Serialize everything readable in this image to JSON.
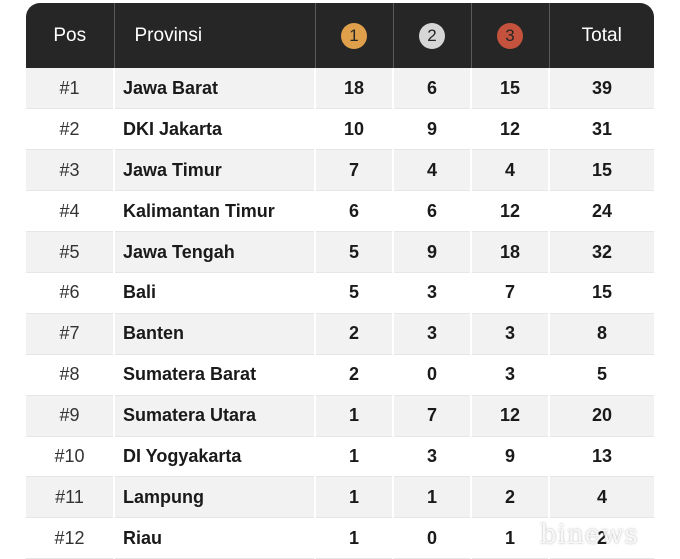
{
  "header": {
    "pos": "Pos",
    "province": "Provinsi",
    "gold": "1",
    "silver": "2",
    "bronze": "3",
    "total": "Total"
  },
  "colors": {
    "header_bg": "#262626",
    "gold": "#e0a04b",
    "silver": "#d6d6d6",
    "bronze": "#c4523d"
  },
  "rows": [
    {
      "pos": "#1",
      "province": "Jawa Barat",
      "gold": "18",
      "silver": "6",
      "bronze": "15",
      "total": "39"
    },
    {
      "pos": "#2",
      "province": "DKI Jakarta",
      "gold": "10",
      "silver": "9",
      "bronze": "12",
      "total": "31"
    },
    {
      "pos": "#3",
      "province": "Jawa Timur",
      "gold": "7",
      "silver": "4",
      "bronze": "4",
      "total": "15"
    },
    {
      "pos": "#4",
      "province": "Kalimantan Timur",
      "gold": "6",
      "silver": "6",
      "bronze": "12",
      "total": "24"
    },
    {
      "pos": "#5",
      "province": "Jawa Tengah",
      "gold": "5",
      "silver": "9",
      "bronze": "18",
      "total": "32"
    },
    {
      "pos": "#6",
      "province": "Bali",
      "gold": "5",
      "silver": "3",
      "bronze": "7",
      "total": "15"
    },
    {
      "pos": "#7",
      "province": "Banten",
      "gold": "2",
      "silver": "3",
      "bronze": "3",
      "total": "8"
    },
    {
      "pos": "#8",
      "province": "Sumatera Barat",
      "gold": "2",
      "silver": "0",
      "bronze": "3",
      "total": "5"
    },
    {
      "pos": "#9",
      "province": "Sumatera Utara",
      "gold": "1",
      "silver": "7",
      "bronze": "12",
      "total": "20"
    },
    {
      "pos": "#10",
      "province": "DI Yogyakarta",
      "gold": "1",
      "silver": "3",
      "bronze": "9",
      "total": "13"
    },
    {
      "pos": "#11",
      "province": "Lampung",
      "gold": "1",
      "silver": "1",
      "bronze": "2",
      "total": "4"
    },
    {
      "pos": "#12",
      "province": "Riau",
      "gold": "1",
      "silver": "0",
      "bronze": "1",
      "total": "2"
    }
  ],
  "watermark": "binews"
}
